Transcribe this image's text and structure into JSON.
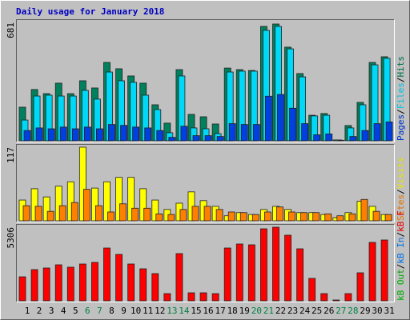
{
  "chart_data": {
    "type": "bar",
    "title": "Daily usage for January 2018",
    "categories": [
      "1",
      "2",
      "3",
      "4",
      "5",
      "6",
      "7",
      "8",
      "9",
      "10",
      "11",
      "12",
      "13",
      "14",
      "15",
      "16",
      "17",
      "18",
      "19",
      "20",
      "21",
      "22",
      "23",
      "24",
      "25",
      "26",
      "27",
      "28",
      "29",
      "30",
      "31"
    ],
    "category_colors": [
      "#000000",
      "#000000",
      "#000000",
      "#000000",
      "#000000",
      "#008040",
      "#008040",
      "#000000",
      "#000000",
      "#000000",
      "#000000",
      "#000000",
      "#008040",
      "#008040",
      "#000000",
      "#000000",
      "#000000",
      "#000000",
      "#000000",
      "#008040",
      "#008040",
      "#000000",
      "#000000",
      "#000000",
      "#000000",
      "#000000",
      "#008040",
      "#008040",
      "#000000",
      "#000000",
      "#000000"
    ],
    "legend_separator": "/",
    "panels": [
      {
        "ylim": [
          0,
          681
        ],
        "yticks": [
          681
        ],
        "series": [
          {
            "name": "Hits",
            "color": "#00805c",
            "values": [
              196,
              299,
              275,
              336,
              275,
              350,
              308,
              457,
              420,
              378,
              336,
              210,
              103,
              415,
              154,
              140,
              98,
              424,
              415,
              410,
              667,
              681,
              546,
              392,
              149,
              159,
              5,
              89,
              224,
              457,
              490
            ]
          },
          {
            "name": "Files",
            "color": "#00d8f8",
            "values": [
              121,
              261,
              266,
              261,
              261,
              294,
              243,
              401,
              350,
              341,
              266,
              182,
              47,
              378,
              75,
              70,
              42,
              401,
              406,
              406,
              644,
              667,
              536,
              373,
              145,
              149,
              5,
              75,
              210,
              443,
              481
            ]
          },
          {
            "name": "Pages",
            "color": "#0040e0",
            "values": [
              60,
              75,
              70,
              80,
              70,
              80,
              70,
              95,
              90,
              80,
              75,
              60,
              20,
              85,
              30,
              30,
              25,
              100,
              95,
              95,
              260,
              270,
              190,
              100,
              35,
              40,
              3,
              25,
              60,
              100,
              110
            ]
          }
        ]
      },
      {
        "ylim": [
          0,
          117
        ],
        "yticks": [
          117
        ],
        "series": [
          {
            "name": "Visits",
            "color": "#ffff00",
            "values": [
              33,
              51,
              38,
              55,
              62,
              117,
              52,
              62,
              69,
              69,
              51,
              33,
              18,
              28,
              46,
              32,
              23,
              8,
              13,
              10,
              18,
              23,
              18,
              13,
              13,
              10,
              5,
              13,
              31,
              23,
              10
            ]
          },
          {
            "name": "Sites",
            "color": "#ff8000",
            "values": [
              24,
              23,
              15,
              24,
              29,
              50,
              24,
              14,
              27,
              20,
              20,
              11,
              10,
              18,
              23,
              23,
              18,
              14,
              13,
              10,
              14,
              22,
              14,
              13,
              13,
              11,
              8,
              11,
              34,
              15,
              10
            ]
          }
        ]
      },
      {
        "ylim": [
          0,
          5306
        ],
        "yticks": [
          5306
        ],
        "series": [
          {
            "name": "kB F",
            "color": "#ff0000",
            "values": [
              1730,
              2249,
              2365,
              2595,
              2422,
              2653,
              2768,
              3806,
              3345,
              2653,
              2307,
              1961,
              519,
              3403,
              577,
              577,
              519,
              3806,
              4095,
              4037,
              5191,
              5306,
              4729,
              3749,
              1615,
              519,
              58,
              519,
              2019,
              4210,
              4383
            ]
          },
          {
            "name": "kB In",
            "color": "#0080ff",
            "values": [
              0,
              0,
              0,
              0,
              0,
              0,
              0,
              0,
              0,
              0,
              0,
              0,
              0,
              0,
              0,
              0,
              0,
              0,
              0,
              0,
              0,
              0,
              0,
              0,
              0,
              0,
              0,
              0,
              0,
              0,
              0
            ]
          },
          {
            "name": "kB Out",
            "color": "#00c000",
            "values": [
              0,
              0,
              0,
              0,
              0,
              0,
              0,
              0,
              0,
              0,
              0,
              0,
              0,
              0,
              0,
              0,
              0,
              0,
              0,
              0,
              0,
              0,
              0,
              0,
              0,
              0,
              0,
              0,
              0,
              0,
              0
            ]
          }
        ]
      }
    ]
  }
}
